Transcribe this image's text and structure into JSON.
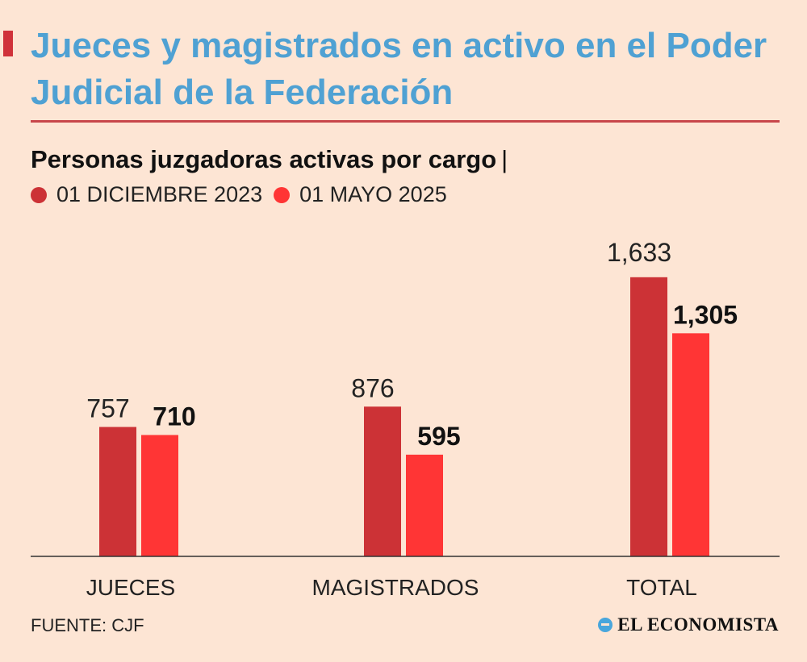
{
  "header": {
    "title": "Jueces y magistrados en activo en el Poder Judicial de la Federación"
  },
  "chart_data": {
    "type": "bar",
    "title": "Jueces y magistrados en activo en el Poder Judicial de la Federación",
    "subtitle": "Personas juzgadoras activas por cargo",
    "subtitle_separator": "|",
    "categories": [
      "JUECES",
      "MAGISTRADOS",
      "TOTAL"
    ],
    "series": [
      {
        "name": "01 DICIEMBRE 2023",
        "values": [
          757,
          876,
          1633
        ],
        "labels": [
          "757",
          "876",
          "1,633"
        ],
        "color": "#cc3236"
      },
      {
        "name": "01 MAYO 2025",
        "values": [
          710,
          595,
          1305
        ],
        "labels": [
          "710",
          "595",
          "1,305"
        ],
        "color": "#ff3535"
      }
    ],
    "ylim": [
      0,
      1800
    ],
    "grid": false,
    "legend_position": "top-left",
    "xlabel": "",
    "ylabel": ""
  },
  "footer": {
    "source": "FUENTE: CJF",
    "brand": "EL ECONOMISTA",
    "brand_icon": "el-economista-logo-icon"
  }
}
